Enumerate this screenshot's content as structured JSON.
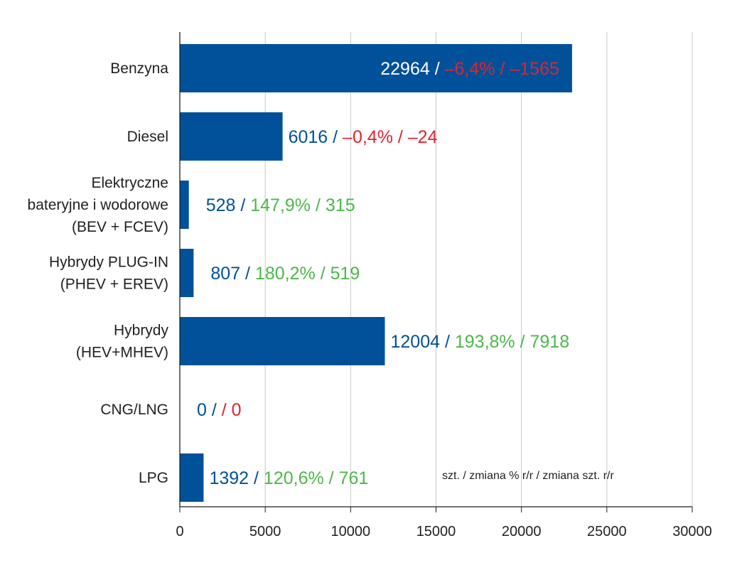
{
  "chart_data": {
    "type": "bar",
    "orientation": "horizontal",
    "categories": [
      [
        "Benzyna"
      ],
      [
        "Diesel"
      ],
      [
        "Elektryczne",
        "bateryjne i wodorowe",
        "(BEV + FCEV)"
      ],
      [
        "Hybrydy PLUG-IN",
        "(PHEV + EREV)"
      ],
      [
        "Hybrydy",
        "(HEV+MHEV)"
      ],
      [
        "CNG/LNG"
      ],
      [
        "LPG"
      ]
    ],
    "values": [
      22964,
      6016,
      528,
      807,
      12004,
      0,
      1392
    ],
    "change_pct_text": [
      "–6,4%",
      "–0,4%",
      "147,9%",
      "180,2%",
      "193,8%",
      "",
      "120,6%"
    ],
    "change_units_text": [
      "–1565",
      "–24",
      "315",
      "519",
      "7918",
      "0",
      "761"
    ],
    "change_sign": [
      "negative",
      "negative",
      "positive",
      "positive",
      "positive",
      "negative",
      "positive"
    ],
    "xlim": [
      0,
      30000
    ],
    "xticks": [
      0,
      5000,
      10000,
      15000,
      20000,
      25000,
      30000
    ],
    "grid": true,
    "note": "szt. / zmiana % r/r / zmiana szt. r/r",
    "colors": {
      "bar": "#005199",
      "value_text": "#005199",
      "value_text_inside": "#ffffff",
      "positive": "#4cb849",
      "negative": "#e3222d",
      "grid": "#c8c8c8",
      "axis": "#231f20"
    }
  }
}
